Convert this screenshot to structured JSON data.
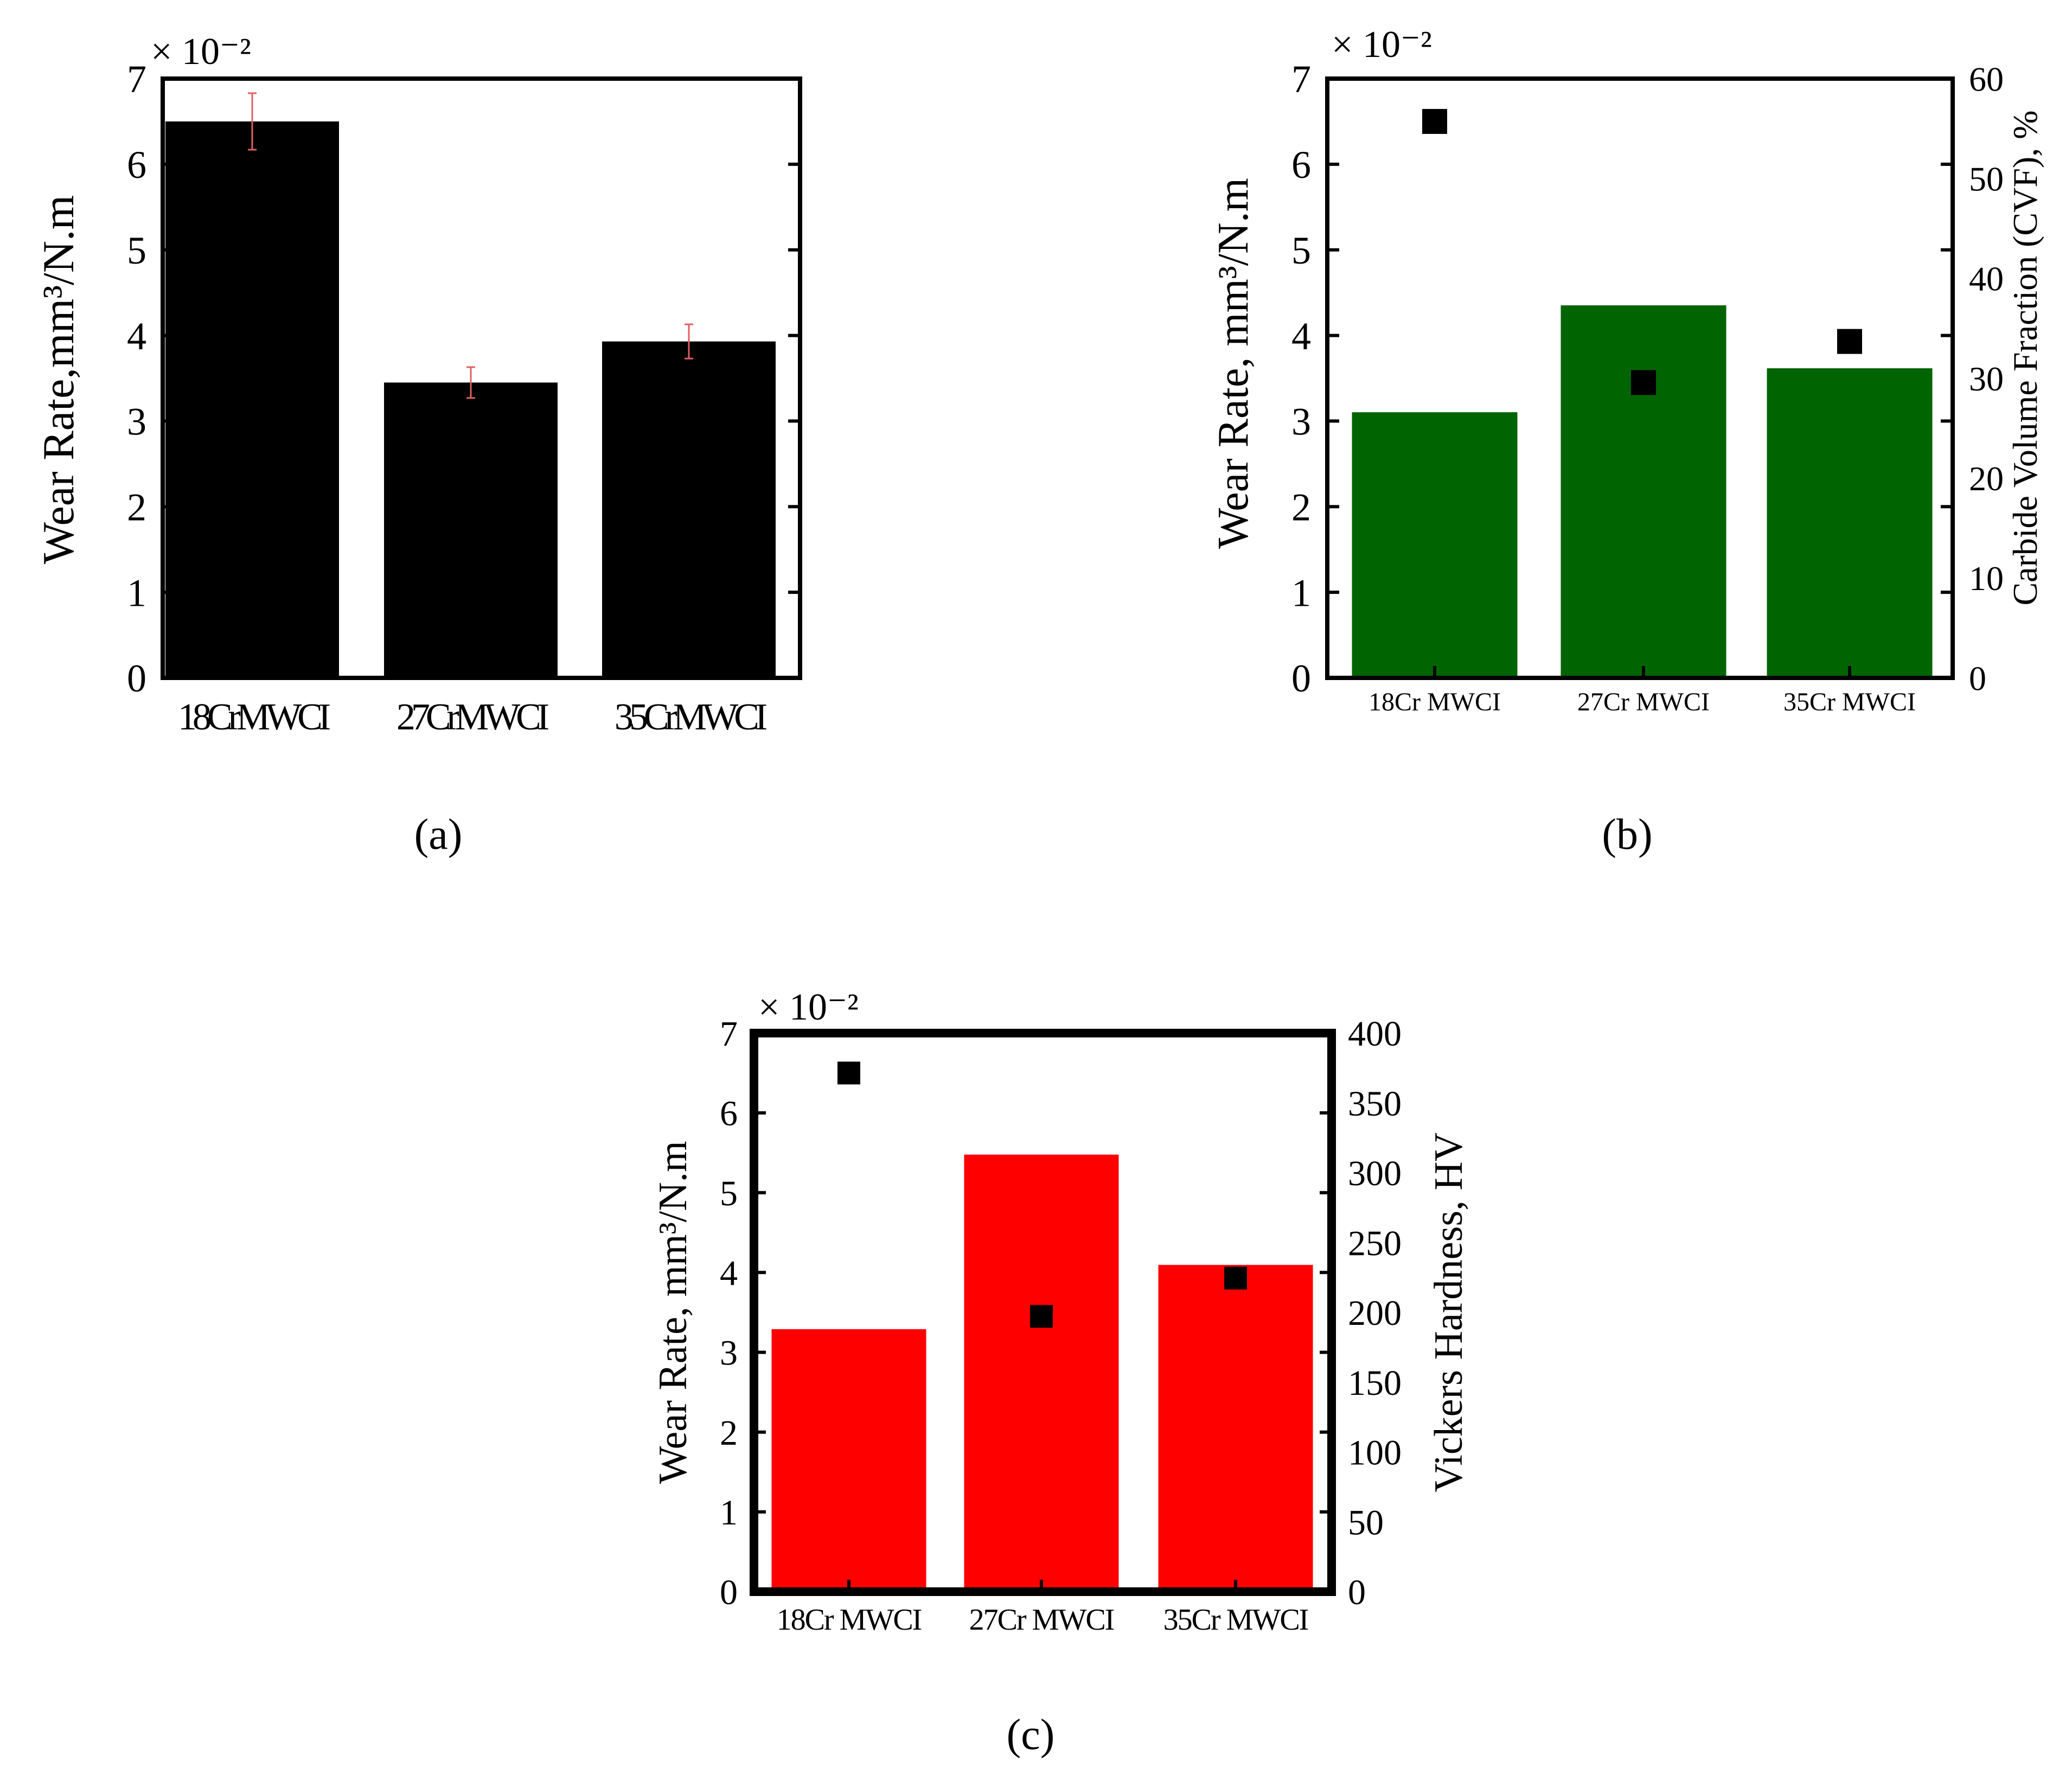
{
  "colors": {
    "panel_a_bar": "#000000",
    "panel_b_bar": "#006400",
    "panel_c_bar": "#ff0000",
    "marker": "#000000",
    "error_bar": "#e06060"
  },
  "chart_data": [
    {
      "id": "a",
      "type": "bar",
      "panel_label": "(a)",
      "categories": [
        "18CrMWCI",
        "27CrMWCI",
        "35CrMWCI"
      ],
      "values": [
        6.5,
        3.45,
        3.93
      ],
      "error": [
        0.33,
        0.18,
        0.2
      ],
      "ylabel": "Wear Rate,mm³/N.m",
      "scale_label": "× 10⁻²",
      "ylim": [
        0,
        7
      ],
      "yticks": [
        "0",
        "1",
        "2",
        "3",
        "4",
        "5",
        "6",
        "7"
      ]
    },
    {
      "id": "b",
      "type": "bar",
      "panel_label": "(b)",
      "categories": [
        "18Cr MWCI",
        "27Cr MWCI",
        "35Cr MWCI"
      ],
      "series": [
        {
          "name": "Carbide Volume Fraction (CVF), %",
          "type": "bar",
          "axis": "right",
          "values": [
            26.6,
            37.3,
            31
          ]
        },
        {
          "name": "Wear Rate",
          "type": "scatter",
          "axis": "left",
          "values": [
            6.5,
            3.45,
            3.93
          ]
        }
      ],
      "ylabel": "Wear Rate, mm³/N.m",
      "ylabel2": "Carbide Volume Fraction (CVF), %",
      "scale_label": "× 10⁻²",
      "ylim": [
        0,
        7
      ],
      "ylim2": [
        0,
        60
      ],
      "yticks": [
        "0",
        "1",
        "2",
        "3",
        "4",
        "5",
        "6",
        "7"
      ],
      "yticks2": [
        "0",
        "10",
        "20",
        "30",
        "40",
        "50",
        "60"
      ]
    },
    {
      "id": "c",
      "type": "bar",
      "panel_label": "(c)",
      "categories": [
        "18Cr MWCI",
        "27Cr MWCI",
        "35Cr MWCI"
      ],
      "series": [
        {
          "name": "Vickers Hardness, HV",
          "type": "bar",
          "axis": "right",
          "values": [
            188,
            313,
            234
          ]
        },
        {
          "name": "Wear Rate",
          "type": "scatter",
          "axis": "left",
          "values": [
            6.5,
            3.45,
            3.93
          ]
        }
      ],
      "ylabel": "Wear Rate, mm³/N.m",
      "ylabel2": "Vickers Hardness, HV",
      "scale_label": "× 10⁻²",
      "ylim": [
        0,
        7
      ],
      "ylim2": [
        0,
        400
      ],
      "yticks": [
        "0",
        "1",
        "2",
        "3",
        "4",
        "5",
        "6",
        "7"
      ],
      "yticks2": [
        "0",
        "50",
        "100",
        "150",
        "200",
        "250",
        "300",
        "350",
        "400"
      ]
    }
  ]
}
